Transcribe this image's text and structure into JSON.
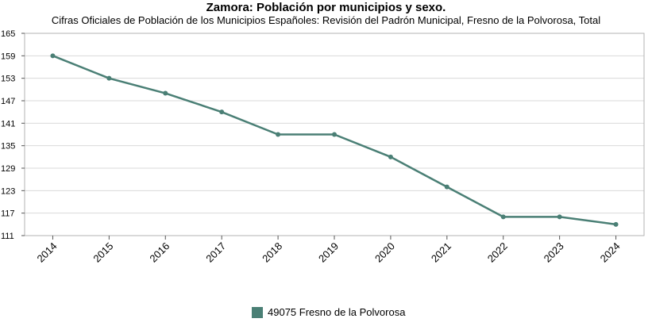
{
  "chart_data": {
    "type": "line",
    "title": "Zamora: Población por municipios y sexo.",
    "subtitle": "Cifras Oficiales de Población de los Municipios Españoles: Revisión del Padrón Municipal, Fresno de la Polvorosa, Total",
    "categories": [
      "2014",
      "2015",
      "2016",
      "2017",
      "2018",
      "2019",
      "2020",
      "2021",
      "2022",
      "2023",
      "2024"
    ],
    "series": [
      {
        "name": "49075 Fresno de la Polvorosa",
        "color": "#4a7f75",
        "values": [
          159,
          153,
          149,
          144,
          138,
          138,
          132,
          124,
          116,
          116,
          114
        ]
      }
    ],
    "yticks": [
      111,
      117,
      123,
      129,
      135,
      141,
      147,
      153,
      159,
      165
    ],
    "ylim": [
      111,
      165
    ],
    "grid": true,
    "legend_position": "bottom"
  }
}
